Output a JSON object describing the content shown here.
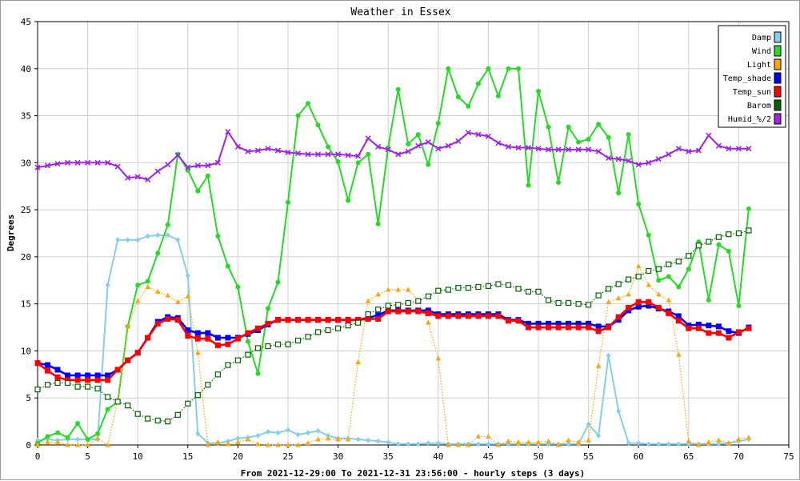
{
  "chart_data": {
    "type": "line",
    "title": "Weather in Essex",
    "xlabel": "From 2021-12-29:00 To 2021-12-31 23:56:00 - hourly steps (3 days)",
    "ylabel": "Degrees",
    "xlim": [
      0,
      75
    ],
    "ylim": [
      0,
      45
    ],
    "xticks": [
      0,
      5,
      10,
      15,
      20,
      25,
      30,
      35,
      40,
      45,
      50,
      55,
      60,
      65,
      70,
      75
    ],
    "yticks": [
      0,
      5,
      10,
      15,
      20,
      25,
      30,
      35,
      40,
      45
    ],
    "grid": true,
    "legend_position": "top-right",
    "x": [
      0,
      1,
      2,
      3,
      4,
      5,
      6,
      7,
      8,
      9,
      10,
      11,
      12,
      13,
      14,
      15,
      16,
      17,
      18,
      19,
      20,
      21,
      22,
      23,
      24,
      25,
      26,
      27,
      28,
      29,
      30,
      31,
      32,
      33,
      34,
      35,
      36,
      37,
      38,
      39,
      40,
      41,
      42,
      43,
      44,
      45,
      46,
      47,
      48,
      49,
      50,
      51,
      52,
      53,
      54,
      55,
      56,
      57,
      58,
      59,
      60,
      61,
      62,
      63,
      64,
      65,
      66,
      67,
      68,
      69,
      70,
      71
    ],
    "series": [
      {
        "name": "Damp",
        "color": "#87ceeb",
        "marker": "diamond",
        "dash": "solid",
        "values": [
          0.5,
          0.6,
          0.5,
          0.6,
          0.6,
          0.6,
          0.6,
          17.0,
          21.8,
          21.8,
          21.8,
          22.2,
          22.3,
          22.3,
          21.8,
          18.0,
          1.2,
          0.2,
          0.2,
          0.4,
          0.7,
          0.8,
          1.0,
          1.4,
          1.3,
          1.6,
          1.1,
          1.3,
          1.5,
          1.0,
          0.7,
          0.7,
          0.6,
          0.5,
          0.4,
          0.3,
          0.1,
          0.1,
          0.1,
          0.2,
          0.2,
          0.1,
          0.1,
          0.1,
          0.1,
          0.1,
          0.1,
          0.1,
          0.1,
          0.1,
          0.1,
          0.1,
          0.1,
          0.1,
          0.1,
          2.2,
          1.0,
          9.5,
          3.6,
          0.2,
          0.2,
          0.1,
          0.1,
          0.1,
          0.1,
          0.1,
          0.1,
          0.1,
          0.1,
          0.2,
          0.4,
          0.6
        ]
      },
      {
        "name": "Wind",
        "color": "#22dd22",
        "marker": "circle",
        "dash": "solid",
        "values": [
          0.2,
          0.9,
          1.3,
          0.8,
          2.3,
          0.6,
          1.2,
          3.8,
          4.6,
          12.6,
          17.0,
          17.4,
          20.4,
          23.4,
          30.9,
          29.2,
          27.0,
          28.6,
          22.2,
          19.0,
          16.8,
          11.0,
          7.6,
          14.5,
          17.3,
          25.8,
          35.0,
          36.3,
          34.0,
          31.7,
          30.1,
          26.0,
          30.0,
          30.9,
          23.5,
          31.6,
          37.8,
          32.0,
          33.0,
          29.8,
          34.2,
          40.0,
          37.0,
          36.0,
          38.4,
          40.0,
          37.1,
          40.0,
          40.0,
          27.6,
          37.6,
          33.8,
          27.9,
          33.8,
          32.2,
          32.5,
          34.1,
          32.7,
          26.8,
          33.0,
          25.6,
          22.3,
          17.5,
          17.9,
          16.8,
          18.7,
          21.6,
          15.4,
          21.3,
          20.6,
          14.8,
          25.1
        ]
      },
      {
        "name": "Light",
        "color": "#ffa500",
        "marker": "triangle",
        "dash": "dotted",
        "values": [
          0,
          0.3,
          0.3,
          0,
          0,
          0,
          0.7,
          0,
          4.8,
          12.6,
          15.3,
          16.8,
          16.3,
          15.9,
          15.2,
          15.8,
          9.8,
          0,
          0.3,
          0.1,
          0.3,
          0.6,
          0.1,
          0,
          0,
          0,
          0,
          0.2,
          0.6,
          0.7,
          0.6,
          0.6,
          8.8,
          15.3,
          16.0,
          16.5,
          16.5,
          16.5,
          15.4,
          13.0,
          9.2,
          0,
          0,
          0,
          0.9,
          0.9,
          0,
          0.4,
          0.3,
          0.3,
          0.3,
          0.4,
          0,
          0.5,
          0.3,
          0.5,
          8.4,
          15.2,
          15.6,
          16.0,
          19.0,
          17.0,
          16.0,
          15.4,
          9.6,
          0.4,
          0,
          0.3,
          0.5,
          0.2,
          0.6,
          0.8
        ]
      },
      {
        "name": "Temp_shade",
        "color": "#0000ff",
        "marker": "square",
        "dash": "solid",
        "values": [
          8.7,
          8.5,
          8.0,
          7.4,
          7.4,
          7.4,
          7.4,
          7.4,
          8.0,
          9.0,
          9.8,
          11.4,
          13.1,
          13.6,
          13.5,
          12.2,
          11.9,
          11.9,
          11.4,
          11.4,
          11.4,
          11.8,
          12.2,
          12.8,
          13.3,
          13.3,
          13.3,
          13.3,
          13.3,
          13.3,
          13.3,
          13.3,
          13.3,
          13.5,
          13.8,
          14.3,
          14.3,
          14.3,
          14.3,
          14.3,
          13.9,
          13.9,
          13.9,
          13.9,
          13.9,
          13.9,
          13.9,
          13.3,
          13.3,
          12.9,
          12.9,
          12.9,
          12.9,
          12.9,
          12.9,
          12.9,
          12.6,
          12.6,
          13.3,
          14.3,
          14.7,
          14.8,
          14.5,
          14.2,
          13.7,
          12.7,
          12.8,
          12.7,
          12.6,
          12.1,
          11.9,
          12.5
        ]
      },
      {
        "name": "Temp_sun",
        "color": "#ff0000",
        "marker": "square",
        "dash": "solid",
        "values": [
          8.7,
          7.9,
          7.2,
          6.9,
          6.9,
          6.9,
          6.9,
          6.9,
          8.0,
          9.0,
          9.8,
          11.4,
          12.9,
          13.4,
          13.3,
          11.6,
          11.3,
          11.3,
          10.6,
          10.7,
          11.3,
          11.9,
          12.4,
          12.9,
          13.3,
          13.3,
          13.3,
          13.3,
          13.3,
          13.3,
          13.3,
          13.3,
          13.3,
          13.4,
          13.4,
          14.2,
          14.2,
          14.2,
          14.2,
          14.0,
          13.7,
          13.7,
          13.7,
          13.7,
          13.7,
          13.7,
          13.7,
          13.2,
          13.2,
          12.5,
          12.5,
          12.5,
          12.5,
          12.5,
          12.5,
          12.5,
          12.1,
          12.5,
          13.6,
          14.6,
          15.2,
          15.2,
          14.6,
          14.0,
          13.2,
          12.4,
          12.4,
          11.9,
          11.9,
          11.4,
          12.0,
          12.4
        ]
      },
      {
        "name": "Barom",
        "color": "#006400",
        "marker": "open-square",
        "dash": "dotted",
        "values": [
          5.9,
          6.4,
          6.6,
          6.6,
          6.2,
          6.2,
          6.0,
          5.1,
          4.6,
          4.2,
          3.3,
          2.8,
          2.6,
          2.5,
          3.2,
          4.4,
          5.3,
          6.4,
          7.5,
          8.5,
          9.0,
          9.6,
          10.3,
          10.5,
          10.7,
          10.7,
          11.1,
          11.5,
          12.0,
          12.2,
          12.4,
          12.7,
          13.0,
          13.9,
          14.4,
          14.8,
          14.9,
          15.1,
          15.3,
          15.8,
          16.4,
          16.5,
          16.7,
          16.7,
          16.8,
          16.9,
          17.1,
          17.0,
          16.6,
          16.3,
          16.3,
          15.4,
          15.1,
          15.1,
          15.0,
          14.9,
          15.9,
          16.6,
          17.1,
          17.6,
          17.9,
          18.5,
          18.7,
          19.2,
          19.5,
          20.1,
          21.2,
          21.6,
          22.1,
          22.4,
          22.5,
          22.8
        ]
      },
      {
        "name": "Humid_%/2",
        "color": "#a020f0",
        "marker": "x",
        "dash": "solid",
        "values": [
          29.5,
          29.7,
          29.9,
          30.0,
          30.0,
          30.0,
          30.0,
          30.0,
          29.6,
          28.4,
          28.5,
          28.2,
          29.1,
          29.8,
          30.8,
          29.5,
          29.7,
          29.7,
          30.0,
          33.3,
          31.7,
          31.2,
          31.3,
          31.5,
          31.3,
          31.1,
          31.0,
          30.9,
          30.9,
          30.9,
          30.9,
          30.8,
          30.7,
          32.6,
          31.7,
          31.4,
          30.9,
          31.2,
          31.8,
          32.2,
          31.5,
          31.8,
          32.3,
          33.2,
          33.0,
          32.8,
          32.1,
          31.7,
          31.6,
          31.6,
          31.5,
          31.4,
          31.4,
          31.4,
          31.4,
          31.4,
          31.2,
          30.5,
          30.4,
          30.2,
          29.8,
          30.0,
          30.4,
          30.9,
          31.5,
          31.2,
          31.3,
          32.9,
          31.8,
          31.5,
          31.5,
          31.5
        ]
      }
    ]
  }
}
